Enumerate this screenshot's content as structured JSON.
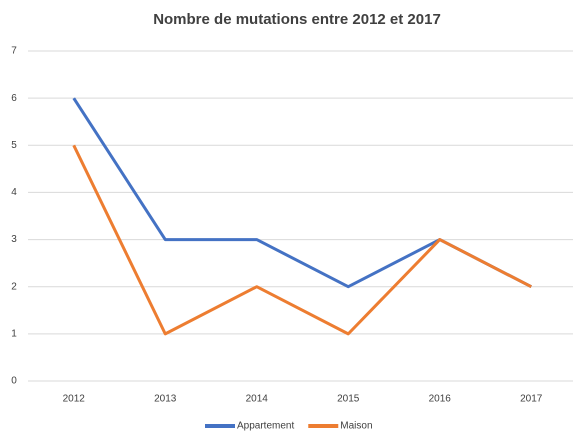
{
  "chart_data": {
    "type": "line",
    "title": "Nombre de mutations entre 2012 et 2017",
    "categories": [
      "2012",
      "2013",
      "2014",
      "2015",
      "2016",
      "2017"
    ],
    "series": [
      {
        "name": "Appartement",
        "color": "#4472c4",
        "values": [
          6,
          3,
          3,
          2,
          3,
          2
        ]
      },
      {
        "name": "Maison",
        "color": "#ed7d31",
        "values": [
          5,
          1,
          2,
          1,
          3,
          2
        ]
      }
    ],
    "ylim": [
      0,
      7
    ],
    "yticks": [
      0,
      1,
      2,
      3,
      4,
      5,
      6,
      7
    ],
    "grid": true,
    "legend": "bottom"
  }
}
